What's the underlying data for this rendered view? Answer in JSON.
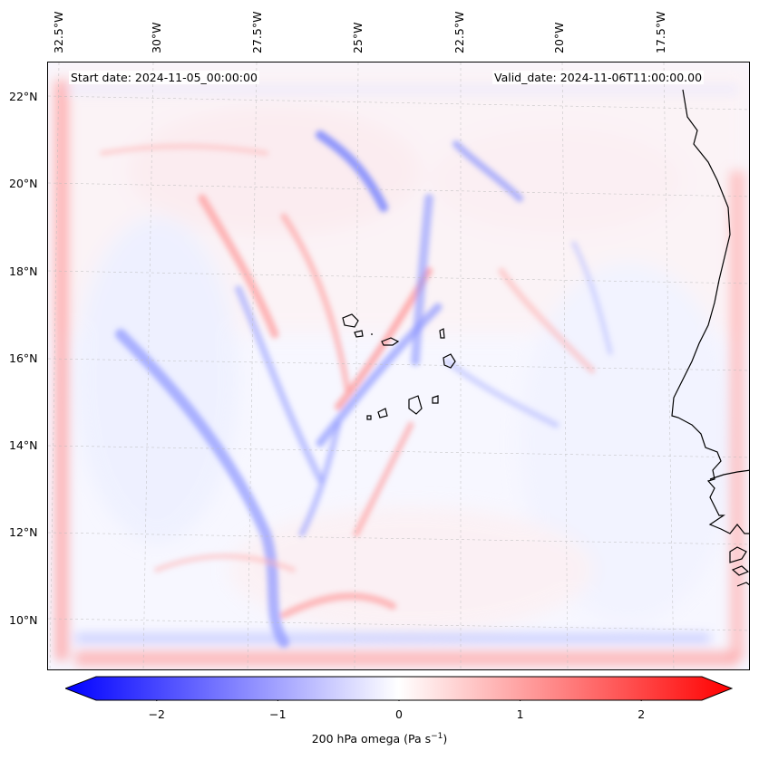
{
  "map": {
    "start_date": "Start date: 2024-11-05_00:00:00",
    "valid_date": "Valid_date: 2024-11-06T11:00:00.00",
    "lon_labels": [
      "32.5°W",
      "30°W",
      "27.5°W",
      "25°W",
      "22.5°W",
      "20°W",
      "17.5°W"
    ],
    "lat_labels": [
      "22°N",
      "20°N",
      "18°N",
      "16°N",
      "14°N",
      "12°N",
      "10°N"
    ],
    "field": "omega",
    "colormap": "bwr",
    "colors": {
      "negative": "#0000ff",
      "positive": "#ff0000",
      "zero": "#ffffff",
      "coast": "#000000",
      "grid": "#bbbbbb"
    }
  },
  "colorbar": {
    "ticks": [
      "−2",
      "−1",
      "0",
      "1",
      "2"
    ],
    "tick_values": [
      -2,
      -1,
      0,
      1,
      2
    ],
    "range": [
      -2.5,
      2.5
    ],
    "label_main": "200 hPa omega (Pa s",
    "label_sup": "−1",
    "label_end": ")"
  }
}
